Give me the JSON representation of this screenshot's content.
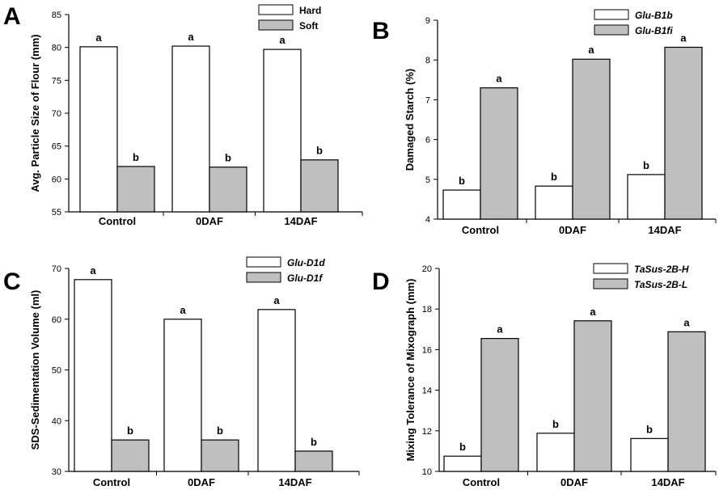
{
  "chart_data": [
    {
      "type": "bar",
      "panel": "A",
      "categories": [
        "Control",
        "0DAF",
        "14DAF"
      ],
      "series": [
        {
          "name": "Hard",
          "values": [
            80.1,
            80.2,
            79.7
          ],
          "color": "#ffffff",
          "letters": [
            "a",
            "a",
            "a"
          ]
        },
        {
          "name": "Soft",
          "values": [
            61.9,
            61.8,
            62.9
          ],
          "color": "#bfbfbf",
          "letters": [
            "b",
            "b",
            "b"
          ]
        }
      ],
      "ylabel": "Avg. Particle Size of Flour (mm)",
      "xlabel": "",
      "ylim": [
        55,
        85
      ],
      "yticks": [
        55,
        60,
        65,
        70,
        75,
        80,
        85
      ],
      "legend_italic": false,
      "legend_position": "top-right"
    },
    {
      "type": "bar",
      "panel": "B",
      "categories": [
        "Control",
        "0DAF",
        "14DAF"
      ],
      "series": [
        {
          "name": "Glu-B1b",
          "values": [
            4.73,
            4.83,
            5.12
          ],
          "color": "#ffffff",
          "letters": [
            "b",
            "b",
            "b"
          ]
        },
        {
          "name": "Glu-B1fi",
          "values": [
            7.3,
            8.02,
            8.32
          ],
          "color": "#bfbfbf",
          "letters": [
            "a",
            "a",
            "a"
          ]
        }
      ],
      "ylabel": "Damaged Starch (%)",
      "xlabel": "",
      "ylim": [
        4,
        9
      ],
      "yticks": [
        4,
        5,
        6,
        7,
        8,
        9
      ],
      "legend_italic": true,
      "legend_position": "top-right"
    },
    {
      "type": "bar",
      "panel": "C",
      "categories": [
        "Control",
        "0DAF",
        "14DAF"
      ],
      "series": [
        {
          "name": "Glu-D1d",
          "values": [
            67.8,
            60.0,
            61.9
          ],
          "color": "#ffffff",
          "letters": [
            "a",
            "a",
            "a"
          ]
        },
        {
          "name": "Glu-D1f",
          "values": [
            36.2,
            36.2,
            34.0
          ],
          "color": "#bfbfbf",
          "letters": [
            "b",
            "b",
            "b"
          ]
        }
      ],
      "ylabel": "SDS-Sedimentation Volume (ml)",
      "xlabel": "",
      "ylim": [
        30,
        70
      ],
      "yticks": [
        30,
        40,
        50,
        60,
        70
      ],
      "legend_italic": true,
      "legend_position": "top-right"
    },
    {
      "type": "bar",
      "panel": "D",
      "categories": [
        "Control",
        "0DAF",
        "14DAF"
      ],
      "series": [
        {
          "name": "TaSus-2B-H",
          "values": [
            10.75,
            11.88,
            11.62
          ],
          "color": "#ffffff",
          "letters": [
            "b",
            "b",
            "b"
          ]
        },
        {
          "name": "TaSus-2B-L",
          "values": [
            16.55,
            17.42,
            16.88
          ],
          "color": "#bfbfbf",
          "letters": [
            "a",
            "a",
            "a"
          ]
        }
      ],
      "ylabel": "Mixing Tolerance of Mixograph (mm)",
      "xlabel": "",
      "ylim": [
        10,
        20
      ],
      "yticks": [
        10,
        12,
        14,
        16,
        18,
        20
      ],
      "legend_italic": true,
      "legend_position": "top-right"
    }
  ]
}
